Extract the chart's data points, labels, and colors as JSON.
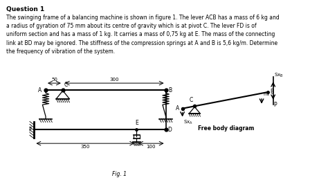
{
  "title": "Question 1",
  "body_text": "The swinging frame of a balancing machine is shown in figure 1. The lever ACB has a mass of 6 kg and\na radius of gyration of 75 mm about its centre of gravity which is at pivot C. The lever FD is of\nuniform section and has a mass of 1 kg. It carries a mass of 0,75 kg at E. The mass of the connecting\nlink at BD may be ignored. The stiffness of the compression springs at A and B is 5,6 kg/m. Determine\nthe frequency of vibration of the system.",
  "fig_label": "Fig. 1",
  "bg_color": "#ffffff",
  "text_color": "#000000"
}
